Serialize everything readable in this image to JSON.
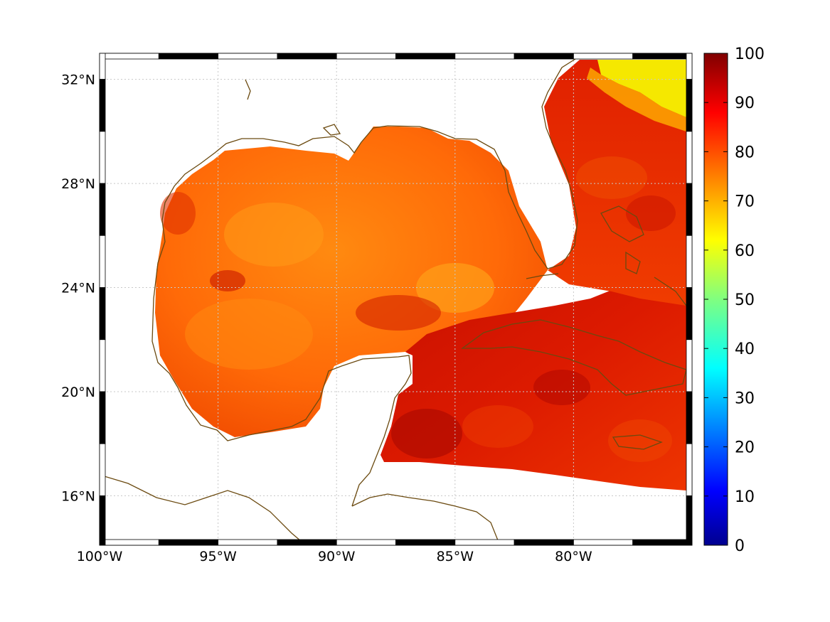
{
  "map": {
    "lon_range": [
      -100,
      -75
    ],
    "lat_range": [
      14.1,
      33.0
    ],
    "lon_ticks": [
      {
        "value": -100,
        "label": "100°W"
      },
      {
        "value": -95,
        "label": "95°W"
      },
      {
        "value": -90,
        "label": "90°W"
      },
      {
        "value": -85,
        "label": "85°W"
      },
      {
        "value": -80,
        "label": "80°W"
      }
    ],
    "lat_ticks": [
      {
        "value": 32,
        "label": "32°N"
      },
      {
        "value": 28,
        "label": "28°N"
      },
      {
        "value": 24,
        "label": "24°N"
      },
      {
        "value": 20,
        "label": "20°N"
      },
      {
        "value": 16,
        "label": "16°N"
      }
    ],
    "grid": true,
    "coastline_color": "#6b4a10",
    "field_description_colors": {
      "ocean_dominant": "#ff6a00",
      "caribbean_dominant": "#d41200",
      "north_atlantic_high": "#f5f500"
    }
  },
  "colorbar": {
    "range": [
      0,
      100
    ],
    "ticks": [
      "100",
      "90",
      "80",
      "70",
      "60",
      "50",
      "40",
      "30",
      "20",
      "10",
      "0"
    ],
    "colormap": [
      "#00008f",
      "#0000ff",
      "#0080ff",
      "#00ffff",
      "#80ff80",
      "#ffff00",
      "#ff8000",
      "#ff0000",
      "#800000"
    ]
  }
}
